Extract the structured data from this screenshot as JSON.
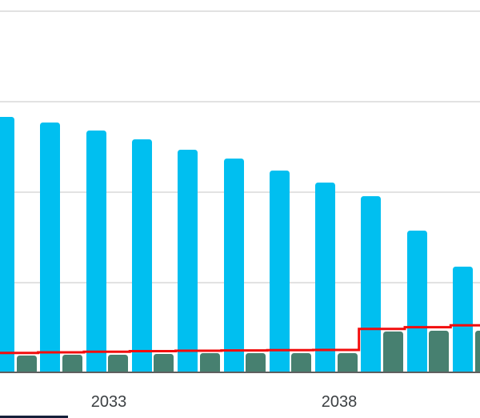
{
  "page": {
    "background": "#ffffff"
  },
  "colors": {
    "cyan_bar": "#00bff0",
    "green_bar": "#478070",
    "red_line": "#f20d0d",
    "gridline": "#e2e2e2",
    "axis_line": "#5f5f5f",
    "tick_text": "#3c4043",
    "bottom_strip": "#15203a"
  },
  "chart_data": {
    "type": "bar",
    "title": "",
    "xlabel": "",
    "ylabel": "",
    "x_years": [
      2031,
      2032,
      2033,
      2034,
      2035,
      2036,
      2037,
      2038,
      2039,
      2040,
      2041
    ],
    "visible_ticks": [
      {
        "year": 2033,
        "label": "2033"
      },
      {
        "year": 2038,
        "label": "2038"
      }
    ],
    "series": [
      {
        "name": "cyan-bars",
        "kind": "bar",
        "color": "#00bff0",
        "values": [
          2.832,
          2.768,
          2.679,
          2.582,
          2.472,
          2.369,
          2.236,
          2.106,
          1.955,
          1.571,
          1.177
        ]
      },
      {
        "name": "green-bars",
        "kind": "bar",
        "color": "#478070",
        "values": [
          0.191,
          0.197,
          0.202,
          0.211,
          0.214,
          0.217,
          0.22,
          0.215,
          0.454,
          0.463,
          0.468
        ]
      },
      {
        "name": "red-step-line",
        "kind": "step",
        "color": "#f20d0d",
        "values": [
          0.219,
          0.226,
          0.233,
          0.239,
          0.244,
          0.247,
          0.251,
          0.253,
          0.486,
          0.504,
          0.525
        ]
      }
    ],
    "ylim": [
      0,
      4.13
    ],
    "gridline_values": [
      1,
      2,
      3,
      4
    ],
    "grid": true,
    "legend": "none",
    "value_unit": "gridline-interval (y-axis labels cropped out of view; left and right edge bars partially cropped)"
  }
}
